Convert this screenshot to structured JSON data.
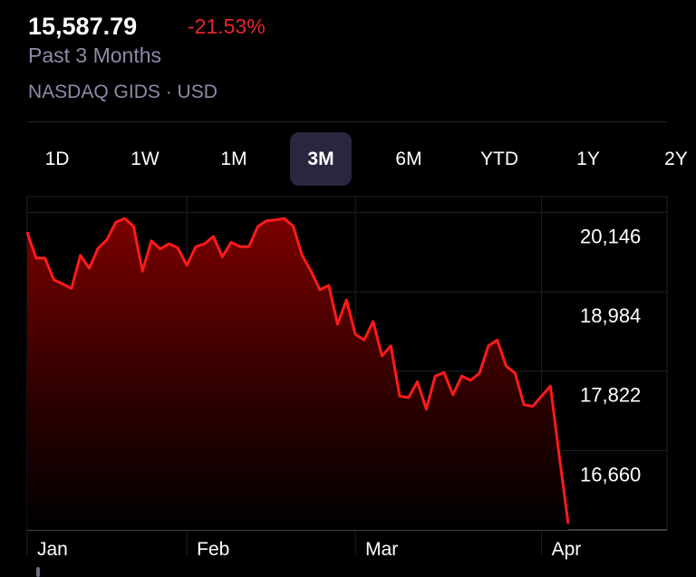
{
  "header": {
    "price": "15,587.79",
    "change": "-21.53%",
    "period": "Past 3 Months",
    "exchange": "NASDAQ GIDS · USD"
  },
  "tabs": [
    {
      "label": "1D",
      "selected": false
    },
    {
      "label": "1W",
      "selected": false
    },
    {
      "label": "1M",
      "selected": false
    },
    {
      "label": "3M",
      "selected": true
    },
    {
      "label": "6M",
      "selected": false
    },
    {
      "label": "YTD",
      "selected": false
    },
    {
      "label": "1Y",
      "selected": false
    },
    {
      "label": "2Y",
      "selected": false
    }
  ],
  "colors": {
    "line": "#ff1a1a",
    "negative": "#e8262b",
    "selected_tab": "#2b2540"
  },
  "chart_data": {
    "type": "area",
    "title": "",
    "xlabel": "",
    "ylabel": "",
    "ylim": [
      15498,
      20378
    ],
    "yticks": [
      20146,
      18984,
      17822,
      16660
    ],
    "ytick_labels": [
      "20,146",
      "18,984",
      "17,822",
      "16,660"
    ],
    "x_month_labels": [
      {
        "label": "Jan",
        "index": 0
      },
      {
        "label": "Feb",
        "index": 18
      },
      {
        "label": "Mar",
        "index": 37
      },
      {
        "label": "Apr",
        "index": 58
      }
    ],
    "grid": true,
    "values": [
      19855,
      19477,
      19477,
      19161,
      19098,
      19034,
      19518,
      19329,
      19624,
      19750,
      20003,
      20057,
      19940,
      19287,
      19729,
      19611,
      19687,
      19624,
      19372,
      19645,
      19687,
      19792,
      19498,
      19708,
      19645,
      19645,
      19940,
      20024,
      20036,
      20057,
      19940,
      19518,
      19287,
      19013,
      19076,
      18508,
      18866,
      18361,
      18277,
      18551,
      18045,
      18192,
      17456,
      17435,
      17667,
      17266,
      17750,
      17801,
      17477,
      17750,
      17687,
      17793,
      18192,
      18277,
      17897,
      17793,
      17329,
      17308,
      17456,
      17603,
      16572,
      15587.79
    ]
  }
}
